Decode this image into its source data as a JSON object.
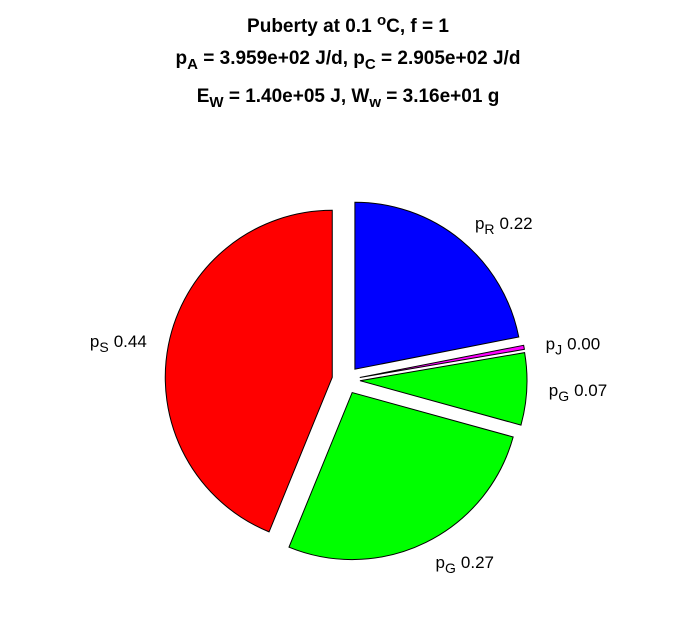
{
  "chart_data": {
    "type": "pie",
    "title": [
      [
        {
          "text": "Puberty at 0.1 "
        },
        {
          "text": "o",
          "script": "sup"
        },
        {
          "text": "C, f = 1"
        }
      ],
      [
        {
          "text": "p"
        },
        {
          "text": "A",
          "script": "sub"
        },
        {
          "text": " = 3.959e+02 J/d,  p"
        },
        {
          "text": "C",
          "script": "sub"
        },
        {
          "text": " = 2.905e+02 J/d"
        }
      ],
      [
        {
          "text": "E"
        },
        {
          "text": "W",
          "script": "sub"
        },
        {
          "text": " = 1.40e+05 J, W"
        },
        {
          "text": "w",
          "script": "sub"
        },
        {
          "text": " = 3.16e+01 g"
        }
      ]
    ],
    "categories": [
      {
        "text": "p",
        "sub": "R"
      },
      {
        "text": "p",
        "sub": "J"
      },
      {
        "text": "p",
        "sub": "G"
      },
      {
        "text": "p",
        "sub": "G"
      },
      {
        "text": "p",
        "sub": "S"
      }
    ],
    "values": [
      0.22,
      0.004,
      0.07,
      0.27,
      0.44
    ],
    "value_labels": [
      "0.22",
      "0.00",
      "0.07",
      "0.27",
      "0.44"
    ],
    "colors": [
      "#0000ff",
      "#ff00ff",
      "#00ff00",
      "#00ff00",
      "#ff0000"
    ]
  }
}
